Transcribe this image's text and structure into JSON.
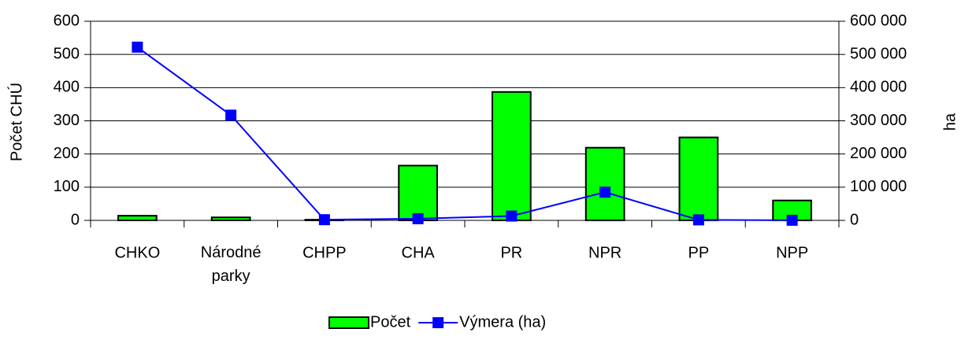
{
  "chart_data": {
    "type": "bar_line",
    "categories": [
      "CHKO",
      "Národné parky",
      "CHPP",
      "CHA",
      "PR",
      "NPR",
      "PP",
      "NPP"
    ],
    "series": [
      {
        "name": "Počet",
        "color": "#00ff00",
        "type": "bar",
        "values": [
          14,
          9,
          2,
          165,
          387,
          219,
          250,
          60
        ]
      },
      {
        "name": "Výmera (ha)",
        "color": "#0000ff",
        "type": "line",
        "axis": "y2",
        "values": [
          522000,
          317000,
          2000,
          5000,
          13000,
          85000,
          1500,
          300
        ]
      }
    ],
    "ylabel": "Počet CHÚ",
    "y2label": "ha",
    "ylim": [
      0,
      600
    ],
    "yticks": [
      0,
      100,
      200,
      300,
      400,
      500,
      600
    ],
    "y2lim": [
      0,
      600000
    ],
    "y2ticks": [
      0,
      {
        "value": 100000,
        "label": "100 000"
      },
      {
        "value": 200000,
        "label": "200 000"
      },
      {
        "value": 300000,
        "label": "300 000"
      },
      {
        "value": 400000,
        "label": "400 000"
      },
      {
        "value": 500000,
        "label": "500 000"
      },
      {
        "value": 600000,
        "label": "600 000"
      }
    ],
    "grid": true,
    "legend": "bottom"
  }
}
